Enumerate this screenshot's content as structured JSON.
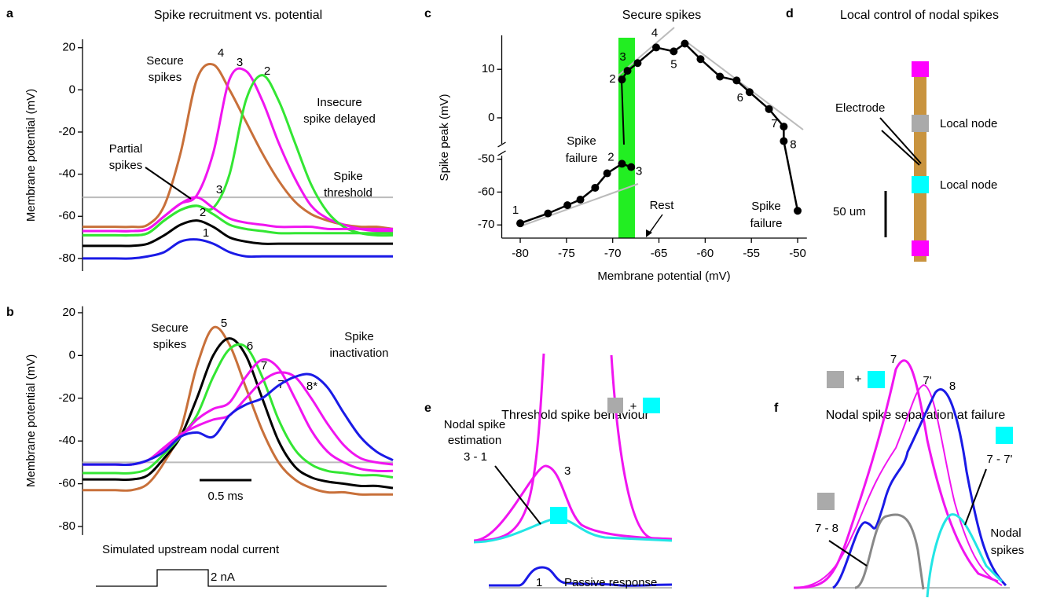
{
  "chart_data": [
    {
      "panel": "a",
      "type": "line",
      "title": "Spike recruitment vs. potential",
      "ylabel": "Membrane potential (mV)",
      "ylim": [
        -86,
        24
      ],
      "yticks": [
        -80,
        -60,
        -40,
        -20,
        0,
        20
      ],
      "threshold": -51,
      "threshold_color": "#bbbbbb",
      "annotations": [
        [
          "Secure",
          "spikes"
        ],
        [
          "Insecure",
          "spike delayed"
        ],
        [
          "Partial",
          "spikes"
        ],
        [
          "Spike",
          "threshold"
        ]
      ],
      "series": [
        {
          "name": "4",
          "color": "#c8703a",
          "values": [
            -65,
            -65,
            -65,
            -65,
            -64,
            -55,
            -30,
            5,
            12,
            0,
            -15,
            -30,
            -43,
            -53,
            -59,
            -62,
            -64,
            -65,
            -65,
            -66
          ]
        },
        {
          "name": "3",
          "color": "#f015f0",
          "values": [
            -67,
            -67,
            -67,
            -67,
            -66,
            -60,
            -54,
            -50,
            -30,
            5,
            9,
            -5,
            -25,
            -42,
            -55,
            -61,
            -64,
            -66,
            -67,
            -67
          ]
        },
        {
          "name": "2",
          "color": "#33e633",
          "values": [
            -69,
            -69,
            -69,
            -69,
            -68,
            -62,
            -57,
            -55,
            -56,
            -40,
            -5,
            7,
            -5,
            -25,
            -45,
            -58,
            -65,
            -68,
            -69,
            -69
          ]
        },
        {
          "name": "3",
          "color": "#f015f0",
          "values": [
            -67,
            -67,
            -67,
            -67,
            -66,
            -60,
            -54,
            -51,
            -56,
            -61,
            -63,
            -64,
            -65,
            -65,
            -65,
            -66,
            -66,
            -66,
            -66,
            -66
          ]
        },
        {
          "name": "2",
          "color": "#33e633",
          "values": [
            -69,
            -69,
            -69,
            -69,
            -68,
            -62,
            -57,
            -55,
            -59,
            -64,
            -66,
            -67,
            -68,
            -68,
            -68,
            -68,
            -68,
            -68,
            -68,
            -68
          ]
        },
        {
          "color": "#000000",
          "values": [
            -74,
            -74,
            -74,
            -74,
            -73,
            -69,
            -64,
            -62,
            -65,
            -70,
            -72,
            -73,
            -73,
            -73,
            -73,
            -73,
            -73,
            -73,
            -73,
            -73
          ]
        },
        {
          "name": "1",
          "color": "#1a1ae6",
          "values": [
            -80,
            -80,
            -80,
            -80,
            -79,
            -77,
            -72,
            -71,
            -73,
            -77,
            -79,
            -79,
            -79,
            -79,
            -79,
            -79,
            -79,
            -79,
            -79,
            -79
          ]
        }
      ]
    },
    {
      "panel": "b",
      "type": "line",
      "ylabel": "Membrane potential (mV)",
      "ylim": [
        -84,
        23
      ],
      "yticks": [
        -80,
        -60,
        -40,
        -20,
        0,
        20
      ],
      "threshold": -50,
      "threshold_color": "#bbbbbb",
      "annotations": [
        [
          "Secure",
          "spikes"
        ],
        [
          "Spike",
          "inactivation"
        ]
      ],
      "scale_bar": "0.5 ms",
      "stimulus_title": "Simulated upstream nodal current",
      "stimulus_label": "2 nA",
      "series": [
        {
          "name": "5",
          "color": "#c8703a",
          "values": [
            -63,
            -63,
            -63,
            -63,
            -60,
            -50,
            -35,
            -5,
            13,
            5,
            -15,
            -35,
            -50,
            -58,
            -62,
            -64,
            -64,
            -65,
            -65,
            -65
          ]
        },
        {
          "color": "#000000",
          "values": [
            -58,
            -58,
            -58,
            -58,
            -56,
            -48,
            -38,
            -20,
            0,
            8,
            0,
            -20,
            -40,
            -52,
            -57,
            -59,
            -60,
            -61,
            -61,
            -62
          ]
        },
        {
          "name": "6",
          "color": "#33e633",
          "values": [
            -55,
            -55,
            -55,
            -55,
            -53,
            -46,
            -38,
            -28,
            -10,
            3,
            4,
            -10,
            -30,
            -44,
            -51,
            -54,
            -55,
            -56,
            -56,
            -57
          ]
        },
        {
          "name": "7",
          "color": "#f015f0",
          "values": [
            -51,
            -51,
            -51,
            -51,
            -49,
            -44,
            -38,
            -30,
            -25,
            -22,
            -10,
            -2,
            -6,
            -20,
            -35,
            -45,
            -50,
            -53,
            -54,
            -54
          ]
        },
        {
          "name": "7'",
          "color": "#f015f0",
          "values": [
            -51,
            -51,
            -51,
            -51,
            -49,
            -43,
            -37,
            -33,
            -30,
            -28,
            -20,
            -12,
            -8,
            -10,
            -20,
            -32,
            -42,
            -48,
            -50,
            -51
          ]
        },
        {
          "name": "8*",
          "color": "#1a1ae6",
          "values": [
            -51,
            -51,
            -51,
            -51,
            -49,
            -45,
            -38,
            -36,
            -38,
            -28,
            -23,
            -20,
            -14,
            -10,
            -9,
            -15,
            -27,
            -38,
            -45,
            -49
          ]
        }
      ]
    },
    {
      "panel": "c",
      "type": "scatter",
      "title": "Secure spikes",
      "xlabel": "Membrane potential (mV)",
      "ylabel": "Spike peak (mV)",
      "xlim": [
        -82,
        -49
      ],
      "xticks": [
        -80,
        -75,
        -70,
        -65,
        -60,
        -55,
        -50
      ],
      "ylim": [
        -74,
        17
      ],
      "ybreak": [
        -47,
        -6
      ],
      "yticks": [
        -70,
        -60,
        -50,
        0,
        10
      ],
      "annotations": [
        [
          "Spike",
          "failure"
        ],
        [
          "Spike",
          "failure"
        ],
        [
          "Rest"
        ]
      ],
      "series": [
        {
          "color": "#000000",
          "x": [
            -80,
            -77,
            -74.9,
            -73.5,
            -71.9,
            -70.6,
            -69,
            -68
          ],
          "values": [
            -69.5,
            -66.5,
            -64,
            -62.3,
            -58.7,
            -54.3,
            -51.4,
            -52.4
          ],
          "point_labels": [
            "1",
            null,
            null,
            null,
            null,
            null,
            "2",
            "3"
          ]
        },
        {
          "color": "#000000",
          "x": [
            -69,
            -68.4,
            -67.3,
            -65.3,
            -63.4,
            -62.2,
            -60.5,
            -58.4,
            -56.6,
            -55.2,
            -53.1,
            -51.5,
            -51.5,
            -50
          ],
          "values": [
            7.9,
            9.7,
            11.3,
            14.5,
            13.7,
            15.3,
            12.1,
            8.5,
            7.7,
            5.3,
            1.8,
            -1.8,
            -4.8,
            -65.7
          ],
          "point_labels": [
            "2",
            "3",
            null,
            "4",
            "5",
            null,
            null,
            null,
            null,
            "6",
            null,
            "7",
            "8",
            null
          ]
        }
      ]
    }
  ],
  "panel_d": {
    "panel": "d",
    "title": "Local control of nodal spikes",
    "electrode": "Electrode",
    "nodes": [
      "Local node",
      "Local node"
    ],
    "scale": "50 um"
  },
  "panel_e": {
    "panel": "e",
    "title": "Threshold spike behaviour",
    "estimation": [
      "Nodal spike",
      "estimation",
      "3 - 1"
    ],
    "plus": "+",
    "labels": [
      "3",
      "1"
    ],
    "passive": "Passive response"
  },
  "panel_f": {
    "panel": "f",
    "title": "Nodal spike separation at failure",
    "plus": "+",
    "labels": [
      "7",
      "7'",
      "8"
    ],
    "diff_cyan": "7 - 7'",
    "diff_grey": "7 - 8",
    "nodal": [
      "Nodal",
      "spikes"
    ]
  }
}
